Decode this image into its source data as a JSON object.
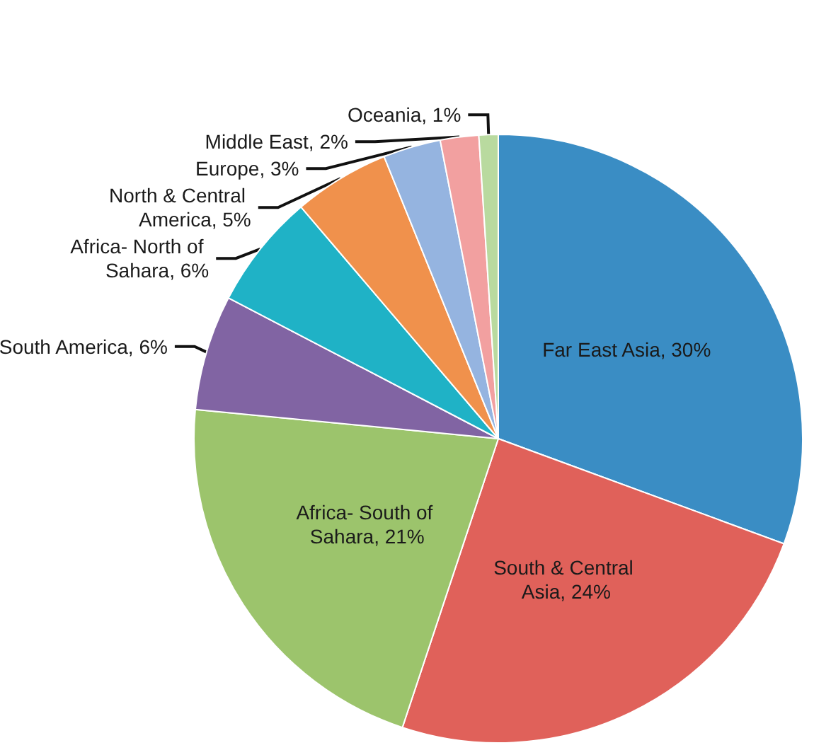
{
  "chart_data": {
    "type": "pie",
    "categories": [
      "Far East Asia",
      "South & Central Asia",
      "Africa- South of Sahara",
      "South America",
      "Africa- North of Sahara",
      "North & Central America",
      "Europe",
      "Middle East",
      "Oceania"
    ],
    "values": [
      30,
      24,
      21,
      6,
      6,
      5,
      3,
      2,
      1
    ],
    "value_labels": [
      "30%",
      "24%",
      "21%",
      "6%",
      "6%",
      "5%",
      "3%",
      "2%",
      "1%"
    ],
    "colors": [
      "#3a8dc4",
      "#e0615a",
      "#9cc46c",
      "#8164a3",
      "#1fb2c6",
      "#f0914c",
      "#95b4e0",
      "#f2a0a0",
      "#b9da9f"
    ]
  }
}
